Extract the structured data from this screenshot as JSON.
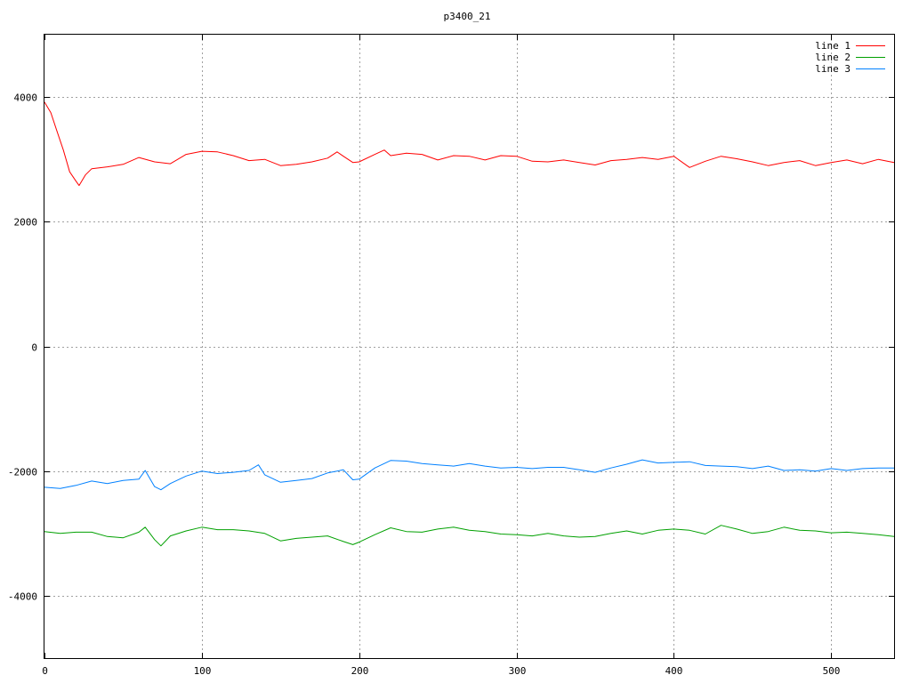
{
  "chart_data": {
    "type": "line",
    "title": "p3400_21",
    "xlabel": "",
    "ylabel": "",
    "xlim": [
      0,
      540
    ],
    "ylim": [
      -5000,
      5000
    ],
    "xticks": [
      0,
      100,
      200,
      300,
      400,
      500
    ],
    "yticks": [
      -4000,
      -2000,
      0,
      2000,
      4000
    ],
    "grid": true,
    "legend_position": "top-right",
    "series": [
      {
        "name": "line 1",
        "color": "#ff0000",
        "x": [
          0,
          4,
          8,
          12,
          16,
          20,
          22,
          26,
          30,
          40,
          50,
          60,
          70,
          80,
          90,
          100,
          110,
          120,
          130,
          140,
          150,
          160,
          170,
          180,
          186,
          190,
          196,
          200,
          210,
          216,
          220,
          230,
          240,
          250,
          260,
          270,
          280,
          290,
          300,
          310,
          320,
          330,
          340,
          350,
          360,
          370,
          380,
          390,
          400,
          410,
          420,
          430,
          440,
          450,
          460,
          470,
          480,
          490,
          500,
          510,
          520,
          530,
          540
        ],
        "values": [
          3920,
          3750,
          3450,
          3150,
          2800,
          2650,
          2580,
          2750,
          2850,
          2880,
          2920,
          3030,
          2960,
          2930,
          3080,
          3130,
          3120,
          3060,
          2980,
          3000,
          2900,
          2920,
          2960,
          3020,
          3120,
          3050,
          2950,
          2960,
          3080,
          3150,
          3060,
          3100,
          3080,
          2990,
          3060,
          3050,
          2990,
          3060,
          3050,
          2970,
          2960,
          2990,
          2950,
          2910,
          2980,
          3000,
          3030,
          3000,
          3050,
          2870,
          2970,
          3050,
          3010,
          2960,
          2900,
          2950,
          2980,
          2900,
          2950,
          2990,
          2930,
          3000,
          2950
        ]
      },
      {
        "name": "line 2",
        "color": "#00a000",
        "x": [
          0,
          10,
          20,
          30,
          40,
          50,
          60,
          64,
          70,
          74,
          80,
          90,
          100,
          110,
          120,
          130,
          140,
          150,
          160,
          170,
          180,
          190,
          196,
          200,
          210,
          220,
          230,
          240,
          250,
          260,
          270,
          280,
          290,
          300,
          310,
          320,
          330,
          340,
          350,
          360,
          370,
          380,
          390,
          400,
          410,
          420,
          430,
          440,
          450,
          460,
          470,
          480,
          490,
          500,
          510,
          520,
          530,
          540
        ],
        "values": [
          -2970,
          -3000,
          -2980,
          -2980,
          -3050,
          -3070,
          -2980,
          -2900,
          -3100,
          -3200,
          -3040,
          -2960,
          -2900,
          -2940,
          -2940,
          -2960,
          -3000,
          -3120,
          -3080,
          -3060,
          -3040,
          -3130,
          -3180,
          -3140,
          -3020,
          -2910,
          -2970,
          -2980,
          -2930,
          -2900,
          -2950,
          -2970,
          -3010,
          -3020,
          -3040,
          -3000,
          -3040,
          -3060,
          -3050,
          -3000,
          -2960,
          -3010,
          -2950,
          -2930,
          -2950,
          -3010,
          -2870,
          -2930,
          -3000,
          -2970,
          -2900,
          -2950,
          -2960,
          -2990,
          -2980,
          -3000,
          -3020,
          -3050
        ]
      },
      {
        "name": "line 3",
        "color": "#0080ff",
        "x": [
          0,
          10,
          20,
          30,
          40,
          50,
          60,
          64,
          70,
          74,
          80,
          90,
          100,
          110,
          120,
          130,
          136,
          140,
          150,
          160,
          170,
          180,
          190,
          196,
          200,
          210,
          220,
          230,
          240,
          250,
          260,
          270,
          280,
          290,
          300,
          310,
          320,
          330,
          340,
          350,
          360,
          370,
          380,
          390,
          400,
          410,
          420,
          430,
          440,
          450,
          460,
          470,
          480,
          490,
          500,
          510,
          520,
          530,
          540
        ],
        "values": [
          -2260,
          -2280,
          -2230,
          -2160,
          -2200,
          -2150,
          -2130,
          -1990,
          -2250,
          -2300,
          -2200,
          -2080,
          -2000,
          -2040,
          -2020,
          -1990,
          -1900,
          -2060,
          -2180,
          -2150,
          -2120,
          -2030,
          -1980,
          -2140,
          -2130,
          -1950,
          -1830,
          -1840,
          -1880,
          -1900,
          -1920,
          -1880,
          -1920,
          -1950,
          -1940,
          -1960,
          -1940,
          -1940,
          -1980,
          -2020,
          -1950,
          -1890,
          -1820,
          -1870,
          -1860,
          -1850,
          -1910,
          -1920,
          -1930,
          -1960,
          -1920,
          -1990,
          -1980,
          -2000,
          -1960,
          -1990,
          -1960,
          -1950,
          -1950
        ]
      }
    ]
  }
}
